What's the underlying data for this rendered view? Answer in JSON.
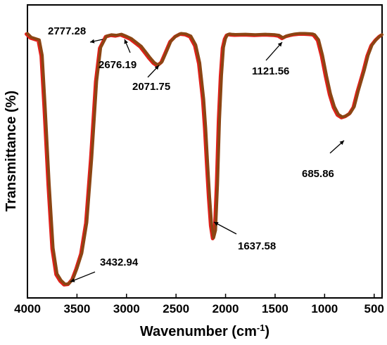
{
  "chart_data": {
    "type": "line",
    "xlabel": "Wavenumber (cm",
    "xlabel_sup": "-1",
    "xlabel_close": ")",
    "ylabel": "Transmittance (%)",
    "xlim": [
      4000,
      420
    ],
    "x_reversed": true,
    "ylim": [
      0,
      100
    ],
    "xticks": [
      4000,
      3500,
      3000,
      2500,
      2000,
      1500,
      1000,
      500
    ],
    "xtick_labels": [
      "4000",
      "3500",
      "3000",
      "2500",
      "2000",
      "1500",
      "1000",
      "500"
    ],
    "yticks_labeled": false,
    "grid": false,
    "colors": {
      "line_main": "#8b4513",
      "line_shadow": "#e0201a",
      "axis": "#000000",
      "annotation": "#000000"
    },
    "series": [
      {
        "x": [
          4000,
          3960,
          3880,
          3850,
          3820,
          3780,
          3740,
          3700,
          3660,
          3620,
          3580,
          3540,
          3500,
          3450,
          3400,
          3350,
          3320,
          3300,
          3260,
          3200,
          3150,
          3100,
          3050,
          3000,
          2950,
          2900,
          2850,
          2800,
          2760,
          2720,
          2680,
          2640,
          2600,
          2550,
          2500,
          2450,
          2400,
          2350,
          2300,
          2260,
          2220,
          2200,
          2180,
          2160,
          2140,
          2120,
          2100,
          2080,
          2060,
          2040,
          2020,
          2000,
          1980,
          1960,
          1940,
          1900,
          1800,
          1700,
          1600,
          1500,
          1460,
          1420,
          1380,
          1340,
          1300,
          1250,
          1200,
          1150,
          1120,
          1100,
          1060,
          1020,
          980,
          940,
          900,
          860,
          820,
          780,
          740,
          700,
          660,
          600,
          560,
          520,
          480,
          440,
          420
        ],
        "y": [
          98.5,
          97.0,
          96.0,
          90,
          70,
          40,
          15,
          5,
          2.5,
          1,
          1.2,
          3,
          7,
          13,
          25,
          50,
          68,
          80,
          93,
          97.5,
          98.0,
          97.8,
          98.2,
          97.4,
          96.5,
          95.0,
          93.5,
          91.0,
          89.0,
          87.2,
          86.2,
          87.5,
          91.0,
          95.5,
          97.5,
          98.5,
          98.3,
          97.5,
          94.0,
          87,
          73,
          62,
          48,
          35,
          24,
          19,
          22,
          40,
          65,
          82,
          93,
          96.5,
          98.0,
          98.3,
          98.2,
          98.1,
          98.2,
          98.0,
          98.2,
          98.0,
          97.8,
          96.8,
          97.6,
          98.0,
          98.3,
          98.5,
          98.5,
          98.4,
          98.3,
          98.0,
          96,
          90,
          82,
          75,
          70,
          67,
          66,
          66.5,
          67.5,
          70,
          76,
          84,
          90,
          94,
          96,
          97.5,
          98.0
        ]
      }
    ],
    "annotations": [
      {
        "label": "2777.28"
      },
      {
        "label": "2676.19"
      },
      {
        "label": "2071.75"
      },
      {
        "label": "1121.56"
      },
      {
        "label": "685.86"
      },
      {
        "label": "1637.58"
      },
      {
        "label": "3432.94"
      }
    ]
  }
}
